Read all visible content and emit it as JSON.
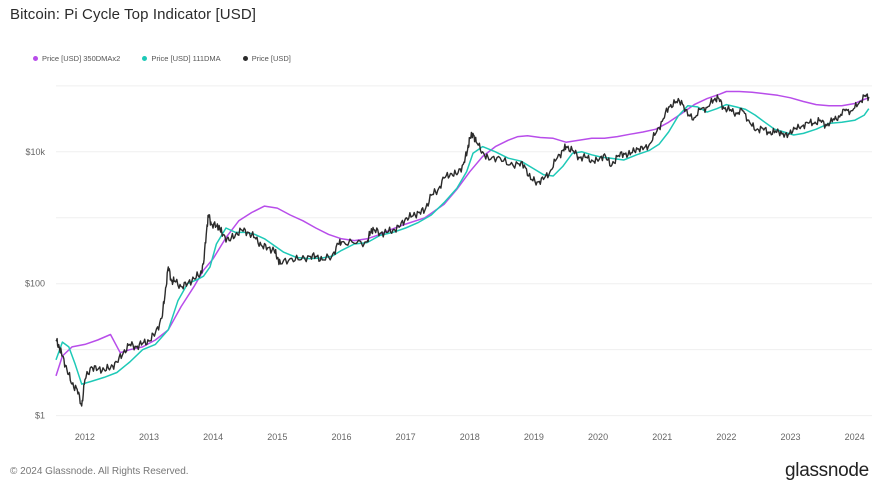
{
  "title": "Bitcoin: Pi Cycle Top Indicator [USD]",
  "footer": "© 2024 Glassnode. All Rights Reserved.",
  "brand": "glassnode",
  "colors": {
    "ma350x2": "#b84dea",
    "ma111": "#1ec9b7",
    "price": "#2b2b2b",
    "grid": "#efefef"
  },
  "legend": [
    {
      "label": "Price [USD] 350DMAx2",
      "color": "#b84dea"
    },
    {
      "label": "Price [USD] 111DMA",
      "color": "#1ec9b7"
    },
    {
      "label": "Price [USD]",
      "color": "#2b2b2b"
    }
  ],
  "chart_data": {
    "type": "line",
    "title": "Bitcoin: Pi Cycle Top Indicator [USD]",
    "xlabel": "",
    "ylabel": "",
    "y_scale": "log",
    "ylim": [
      0.8,
      200000
    ],
    "xlim": [
      2011.55,
      2024.27
    ],
    "grid": true,
    "legend_position": "top-left",
    "x_ticks": [
      "2012",
      "2013",
      "2014",
      "2015",
      "2016",
      "2017",
      "2018",
      "2019",
      "2020",
      "2021",
      "2022",
      "2023",
      "2024"
    ],
    "y_ticks": [
      "$1",
      "$100",
      "$10k"
    ],
    "series": [
      {
        "name": "Price [USD]",
        "x": [
          2011.55,
          2011.6,
          2011.65,
          2011.72,
          2011.8,
          2011.88,
          2011.95,
          2012.0,
          2012.1,
          2012.2,
          2012.3,
          2012.4,
          2012.5,
          2012.6,
          2012.7,
          2012.8,
          2012.9,
          2013.0,
          2013.1,
          2013.2,
          2013.25,
          2013.3,
          2013.35,
          2013.4,
          2013.5,
          2013.6,
          2013.7,
          2013.8,
          2013.85,
          2013.9,
          2013.93,
          2013.97,
          2014.05,
          2014.1,
          2014.15,
          2014.25,
          2014.35,
          2014.45,
          2014.55,
          2014.65,
          2014.75,
          2014.85,
          2014.95,
          2015.0,
          2015.05,
          2015.2,
          2015.35,
          2015.5,
          2015.6,
          2015.7,
          2015.85,
          2015.95,
          2016.0,
          2016.2,
          2016.4,
          2016.45,
          2016.5,
          2016.6,
          2016.7,
          2016.8,
          2016.9,
          2017.0,
          2017.1,
          2017.2,
          2017.3,
          2017.4,
          2017.5,
          2017.6,
          2017.7,
          2017.8,
          2017.9,
          2017.96,
          2018.0,
          2018.05,
          2018.1,
          2018.2,
          2018.3,
          2018.45,
          2018.6,
          2018.75,
          2018.85,
          2018.95,
          2019.05,
          2019.15,
          2019.25,
          2019.35,
          2019.45,
          2019.5,
          2019.6,
          2019.7,
          2019.8,
          2019.9,
          2020.0,
          2020.1,
          2020.2,
          2020.3,
          2020.4,
          2020.5,
          2020.6,
          2020.7,
          2020.8,
          2020.9,
          2021.0,
          2021.1,
          2021.2,
          2021.3,
          2021.4,
          2021.5,
          2021.6,
          2021.7,
          2021.8,
          2021.87,
          2021.95,
          2022.05,
          2022.15,
          2022.25,
          2022.35,
          2022.45,
          2022.55,
          2022.65,
          2022.75,
          2022.85,
          2022.95,
          2023.05,
          2023.15,
          2023.25,
          2023.35,
          2023.45,
          2023.55,
          2023.65,
          2023.75,
          2023.85,
          2023.95,
          2024.05,
          2024.15,
          2024.22
        ],
        "values": [
          14,
          11,
          8,
          5,
          3,
          2.5,
          1.4,
          3.5,
          5.5,
          5,
          5,
          5.3,
          6.5,
          9,
          12,
          11,
          12.5,
          13.5,
          18,
          30,
          70,
          180,
          110,
          110,
          90,
          100,
          120,
          140,
          200,
          700,
          1100,
          800,
          750,
          700,
          550,
          450,
          560,
          650,
          600,
          500,
          380,
          350,
          320,
          250,
          200,
          240,
          230,
          260,
          260,
          230,
          260,
          400,
          430,
          410,
          430,
          600,
          670,
          580,
          600,
          650,
          720,
          980,
          1050,
          1200,
          1300,
          2200,
          2600,
          4000,
          4700,
          4500,
          6500,
          10000,
          16000,
          19000,
          14000,
          10000,
          7500,
          8500,
          6300,
          6600,
          6300,
          3800,
          3500,
          3800,
          5000,
          7700,
          10500,
          12000,
          10500,
          8300,
          8200,
          7500,
          7200,
          9300,
          6000,
          8500,
          9500,
          9000,
          11500,
          10800,
          13000,
          19000,
          29000,
          48000,
          55000,
          60000,
          35000,
          33000,
          44000,
          47000,
          61000,
          66000,
          48000,
          42000,
          39000,
          42000,
          30000,
          21000,
          23000,
          20000,
          19500,
          20500,
          16500,
          23500,
          22500,
          28000,
          27000,
          29500,
          26000,
          28500,
          35000,
          42000,
          42000,
          52000,
          70000,
          68000
        ]
      },
      {
        "name": "Price [USD] 111DMA",
        "x": [
          2011.55,
          2011.65,
          2011.75,
          2011.85,
          2011.95,
          2012.1,
          2012.3,
          2012.5,
          2012.7,
          2012.9,
          2013.1,
          2013.3,
          2013.45,
          2013.6,
          2013.75,
          2013.85,
          2013.95,
          2014.05,
          2014.2,
          2014.35,
          2014.5,
          2014.65,
          2014.8,
          2014.95,
          2015.1,
          2015.3,
          2015.5,
          2015.7,
          2015.85,
          2016.0,
          2016.2,
          2016.4,
          2016.6,
          2016.8,
          2017.0,
          2017.2,
          2017.4,
          2017.6,
          2017.8,
          2017.95,
          2018.05,
          2018.2,
          2018.4,
          2018.6,
          2018.8,
          2019.0,
          2019.15,
          2019.3,
          2019.45,
          2019.6,
          2019.75,
          2019.9,
          2020.05,
          2020.2,
          2020.4,
          2020.6,
          2020.8,
          2020.95,
          2021.1,
          2021.25,
          2021.4,
          2021.55,
          2021.7,
          2021.85,
          2022.0,
          2022.15,
          2022.3,
          2022.45,
          2022.6,
          2022.75,
          2022.9,
          2023.05,
          2023.2,
          2023.4,
          2023.6,
          2023.8,
          2024.0,
          2024.15,
          2024.22
        ],
        "values": [
          7,
          13,
          11,
          6,
          3,
          3.3,
          3.8,
          4.5,
          6.5,
          10,
          12,
          20,
          55,
          100,
          115,
          130,
          180,
          400,
          700,
          600,
          600,
          560,
          480,
          380,
          300,
          250,
          240,
          245,
          260,
          320,
          400,
          420,
          540,
          600,
          700,
          850,
          1100,
          1700,
          2800,
          5000,
          9500,
          12000,
          10000,
          8000,
          7200,
          5500,
          4500,
          4300,
          6000,
          9500,
          10000,
          9000,
          8300,
          8000,
          7500,
          9000,
          10500,
          13000,
          20000,
          35000,
          50000,
          48000,
          40000,
          45000,
          52000,
          48000,
          44000,
          36000,
          28000,
          22000,
          20000,
          18000,
          19000,
          22000,
          27000,
          28000,
          30000,
          36000,
          45000
        ]
      },
      {
        "name": "Price [USD] 350DMAx2",
        "x": [
          2011.55,
          2011.65,
          2011.8,
          2012.0,
          2012.2,
          2012.4,
          2012.55,
          2012.7,
          2012.9,
          2013.1,
          2013.3,
          2013.5,
          2013.7,
          2013.85,
          2014.0,
          2014.2,
          2014.4,
          2014.6,
          2014.8,
          2015.0,
          2015.2,
          2015.4,
          2015.6,
          2015.8,
          2016.0,
          2016.2,
          2016.4,
          2016.6,
          2016.8,
          2017.0,
          2017.3,
          2017.6,
          2017.8,
          2018.0,
          2018.2,
          2018.4,
          2018.6,
          2018.75,
          2018.9,
          2019.1,
          2019.3,
          2019.5,
          2019.7,
          2019.9,
          2020.1,
          2020.3,
          2020.5,
          2020.7,
          2020.9,
          2021.1,
          2021.3,
          2021.5,
          2021.7,
          2021.9,
          2022.0,
          2022.2,
          2022.4,
          2022.6,
          2022.8,
          2023.0,
          2023.2,
          2023.4,
          2023.6,
          2023.8,
          2024.0,
          2024.1,
          2024.22
        ],
        "values": [
          4,
          8,
          11,
          12,
          14,
          17,
          9,
          10,
          11,
          14,
          20,
          45,
          90,
          160,
          240,
          500,
          900,
          1200,
          1500,
          1400,
          1100,
          900,
          700,
          560,
          480,
          450,
          480,
          560,
          680,
          800,
          1000,
          1600,
          2700,
          5000,
          8500,
          12000,
          15000,
          17000,
          17500,
          16500,
          16000,
          14000,
          15000,
          16000,
          16000,
          17000,
          18500,
          20000,
          22000,
          28000,
          38000,
          52000,
          64000,
          75000,
          82000,
          82000,
          80000,
          76000,
          72000,
          66000,
          58000,
          52000,
          50000,
          50000,
          54000,
          60000,
          66000
        ]
      }
    ]
  }
}
